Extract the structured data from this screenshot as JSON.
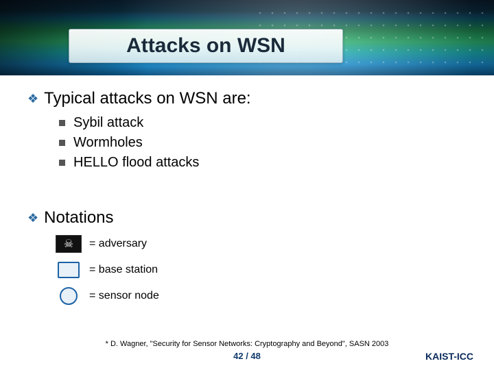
{
  "title": "Attacks on WSN",
  "section1": {
    "heading": "Typical attacks on WSN are:",
    "items": [
      "Sybil attack",
      "Wormholes",
      "HELLO flood attacks"
    ]
  },
  "section2": {
    "heading": "Notations",
    "rows": [
      {
        "icon": "skull",
        "label": "= adversary"
      },
      {
        "icon": "square",
        "label": "= base station"
      },
      {
        "icon": "circle",
        "label": "= sensor node"
      }
    ]
  },
  "citation": "* D. Wagner, \"Security for Sensor Networks: Cryptography and Beyond\", SASN 2003",
  "page": "42 / 48",
  "org": "KAIST-ICC",
  "colors": {
    "bullet_diamond": "#2a6aa0",
    "bullet_square": "#555555",
    "shape_border": "#1a62a6",
    "shape_fill": "#e8f0f8",
    "footer_text": "#103a6a"
  },
  "fontsizes": {
    "title": 30,
    "h1": 24,
    "sub": 20,
    "notation": 16,
    "citation": 11,
    "footer": 13
  }
}
